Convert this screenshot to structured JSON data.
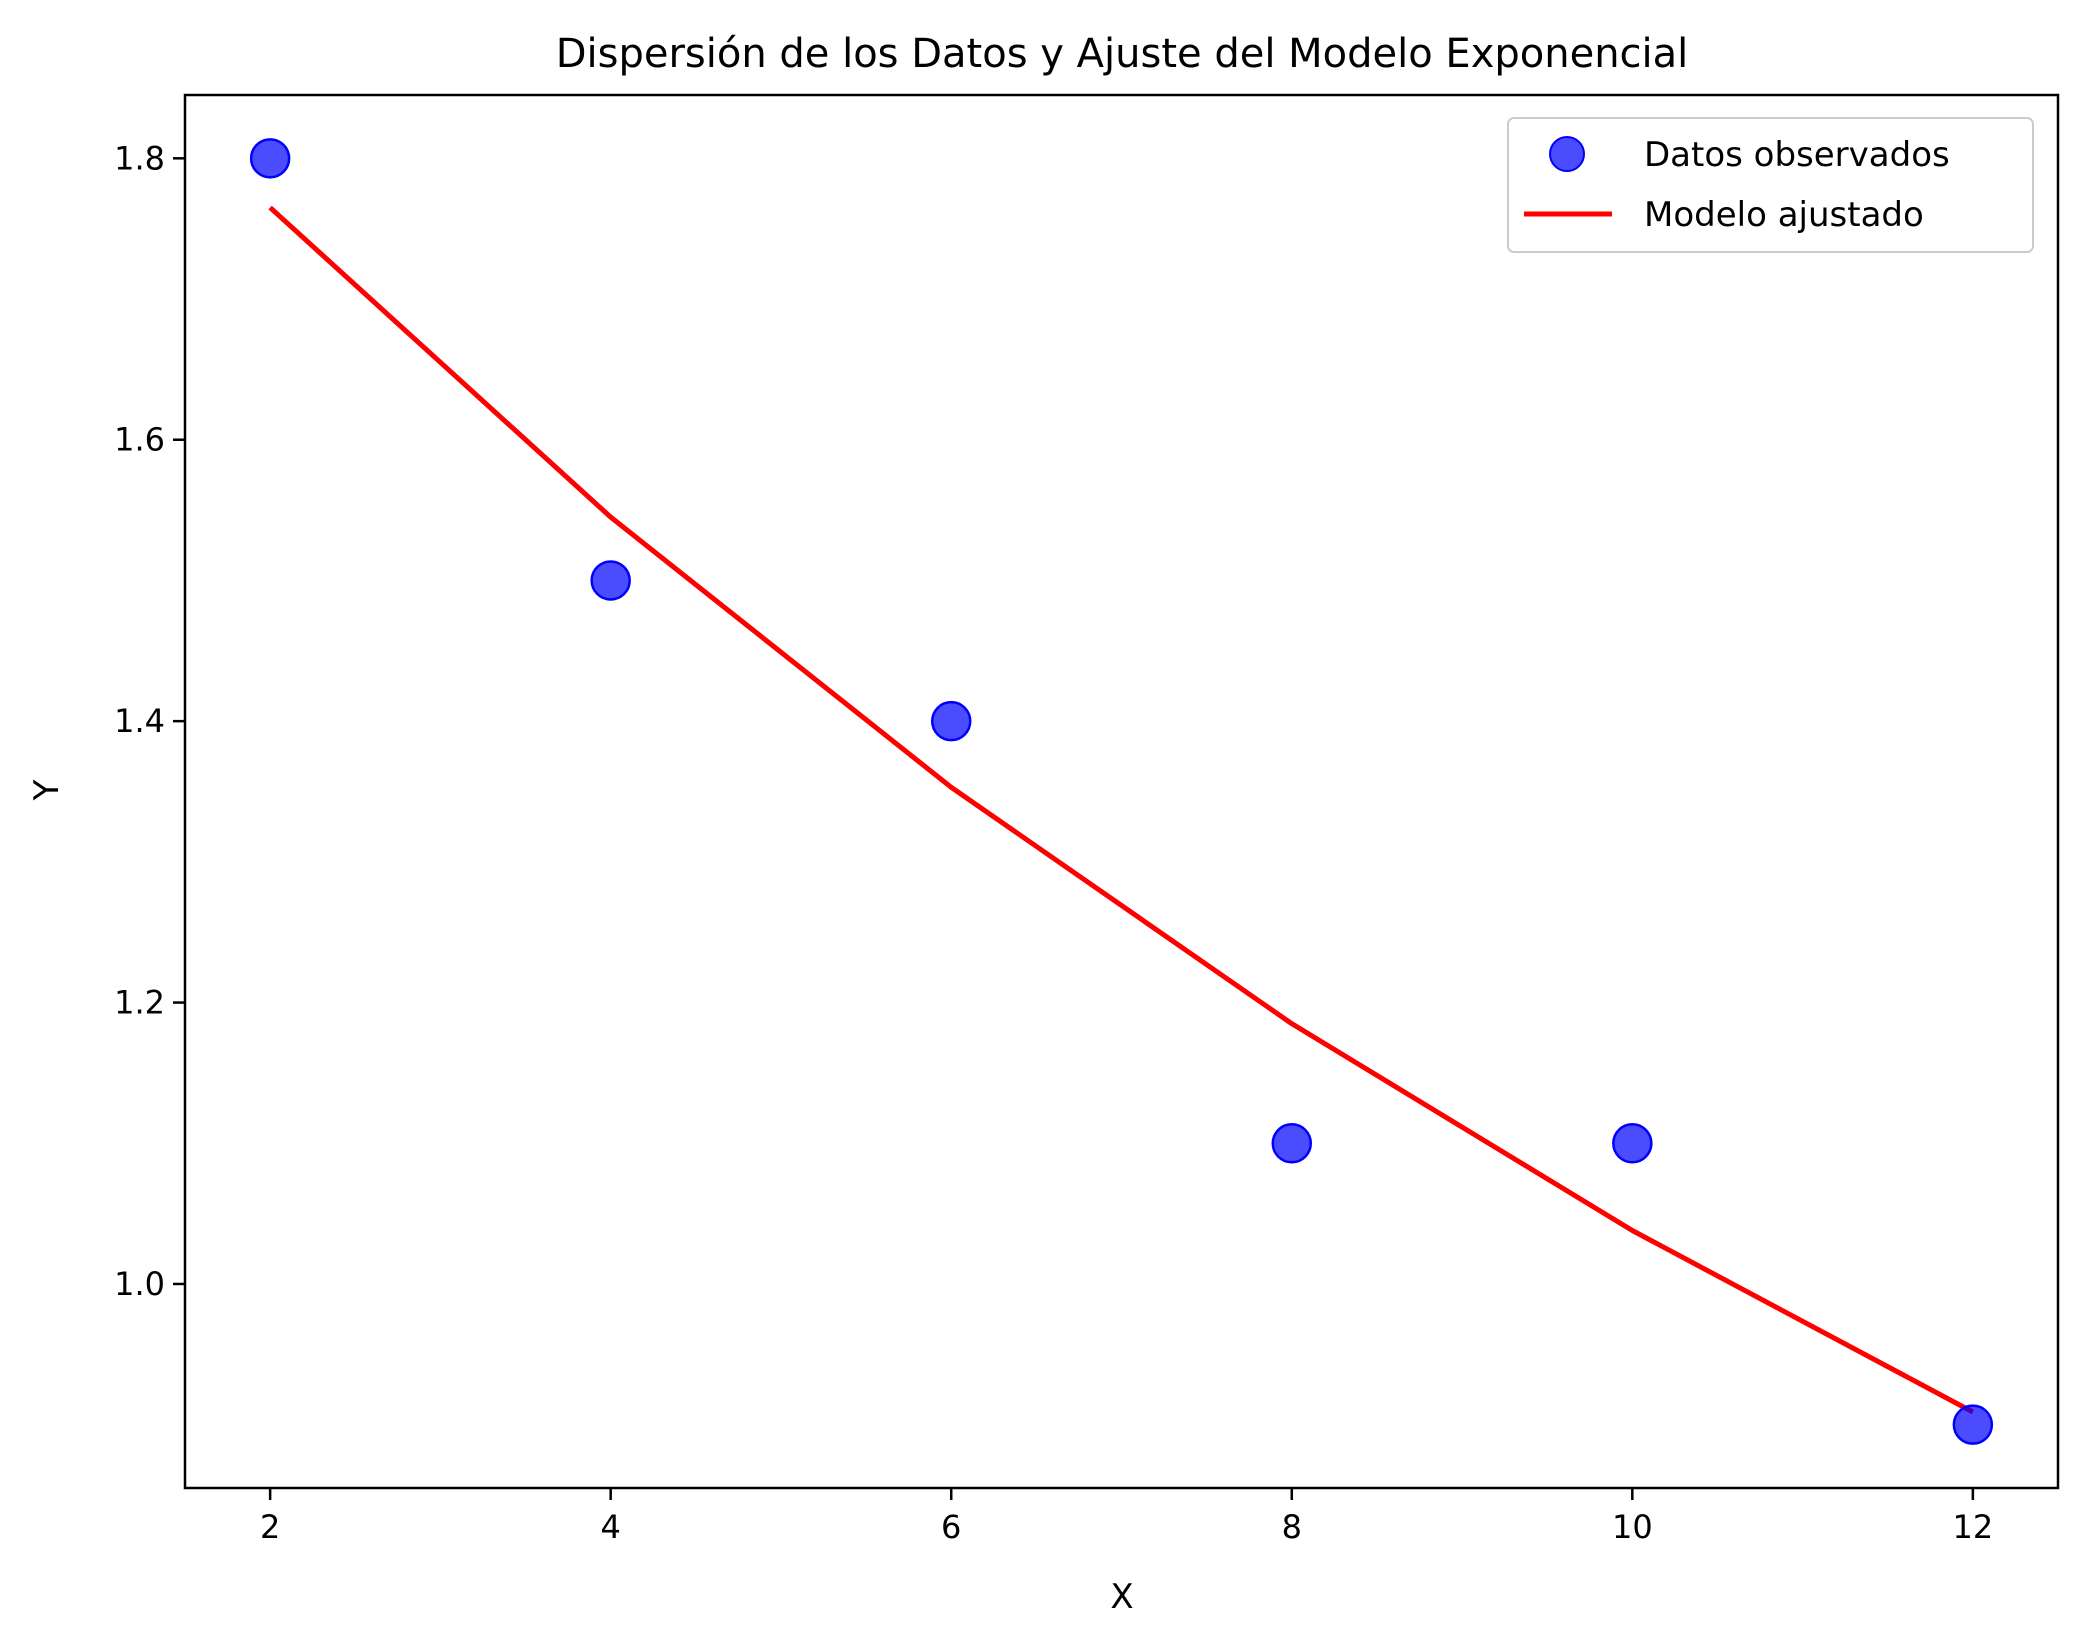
{
  "chart_data": {
    "type": "scatter",
    "title": "Dispersión de los Datos y Ajuste del Modelo Exponencial",
    "xlabel": "X",
    "ylabel": "Y",
    "xlim": [
      1.5,
      12.5
    ],
    "ylim": [
      0.855,
      1.845
    ],
    "xticks": [
      2,
      4,
      6,
      8,
      10,
      12
    ],
    "yticks": [
      1.0,
      1.2,
      1.4,
      1.6,
      1.8
    ],
    "legend_position": "top-right",
    "grid": false,
    "series": [
      {
        "name": "Datos observados",
        "kind": "scatter",
        "color": "#0000ff",
        "x": [
          2,
          4,
          6,
          8,
          10,
          12
        ],
        "y": [
          1.8,
          1.5,
          1.4,
          1.1,
          1.1,
          0.9
        ]
      },
      {
        "name": "Modelo ajustado",
        "kind": "line",
        "color": "#ff0000",
        "x": [
          2,
          4,
          6,
          8,
          10,
          12
        ],
        "y": [
          1.765,
          1.545,
          1.353,
          1.185,
          1.038,
          0.909
        ]
      }
    ]
  }
}
